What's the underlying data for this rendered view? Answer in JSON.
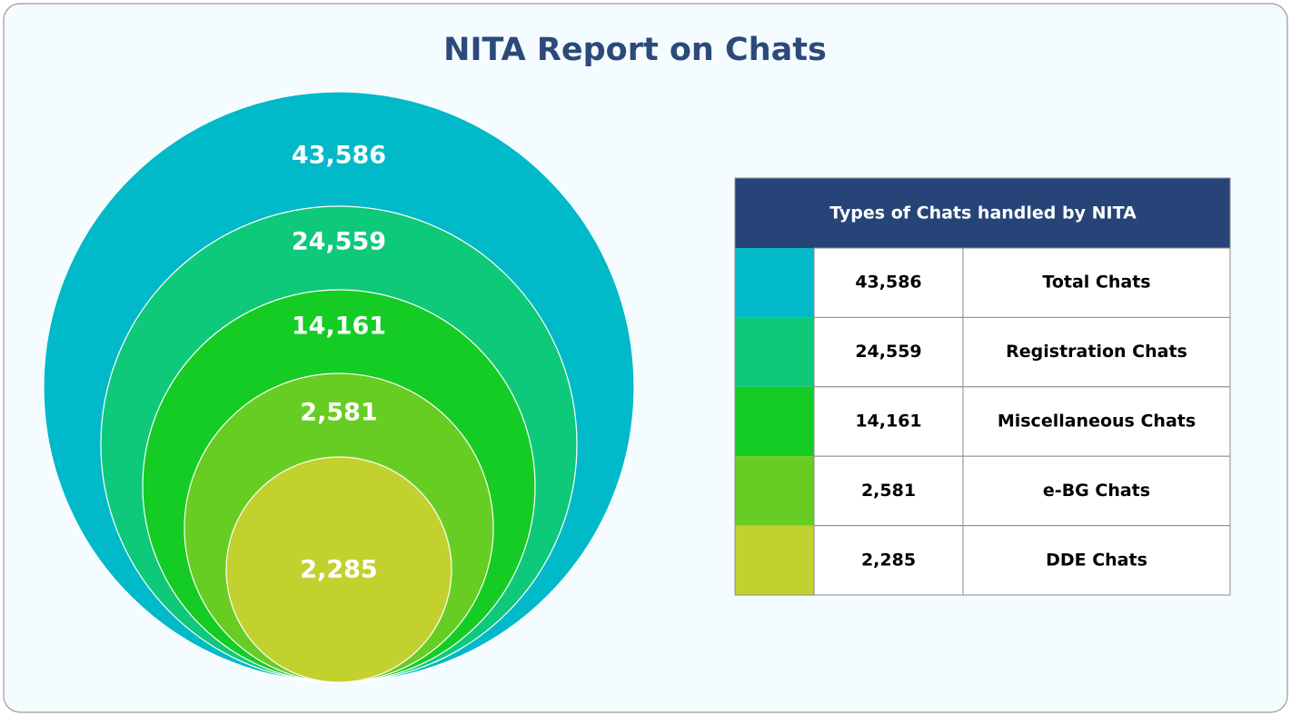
{
  "chart_data": {
    "type": "nested-circles",
    "title": "NITA Report on Chats",
    "legend_title": "Types of Chats handled by NITA",
    "categories": [
      "Total Chats",
      "Registration Chats",
      "Miscellaneous Chats",
      "e-BG Chats",
      "DDE Chats"
    ],
    "values": [
      43586,
      24559,
      14161,
      2581,
      2285
    ],
    "value_labels": [
      "43,586",
      "24,559",
      "14,161",
      "2,581",
      "2,285"
    ],
    "colors": [
      "#00b9c9",
      "#0ec979",
      "#15cc24",
      "#67cd22",
      "#c3d12f"
    ]
  }
}
